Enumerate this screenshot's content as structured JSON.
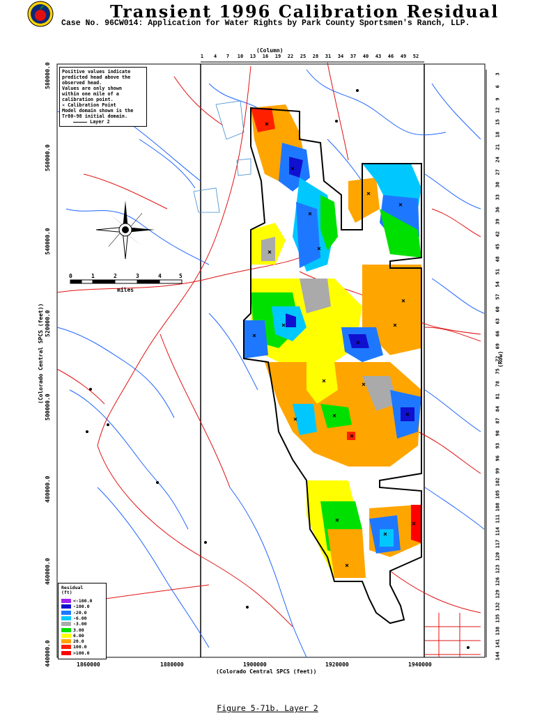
{
  "header": {
    "title": "Transient 1996 Calibration Residual",
    "subtitle": "Case No. 96CW014: Application for Water Rights by Park County Sportsmen's Ranch, LLP."
  },
  "note": {
    "line1": "Positive values indicate",
    "line2": "predicted head above the",
    "line3": "observed head.",
    "line4": "Values are only shown",
    "line5": "within one mile of a",
    "line6": "calibration point.",
    "line7": "✕ Calibration Point",
    "line8": "Model domain shown is the",
    "line9": "Tr80-98 initial domain.",
    "line10": "Layer 2"
  },
  "scalebar": {
    "ticks": [
      "0",
      "1",
      "2",
      "3",
      "4",
      "5"
    ],
    "unit": "miles"
  },
  "axes": {
    "left_ticks": [
      "580000.0",
      "560000.0",
      "540000.0",
      "520000.0",
      "500000.0",
      "480000.0",
      "460000.0",
      "440000.0"
    ],
    "left_label": "(Colorado Central SPCS (feet))",
    "bottom_ticks": [
      "1860000",
      "1880000",
      "1900000",
      "1920000",
      "1940000"
    ],
    "bottom_label": "(Colorado Central SPCS (feet))",
    "top_label": "(Column)",
    "top_ticks": [
      "1",
      "4",
      "7",
      "10",
      "13",
      "16",
      "19",
      "22",
      "25",
      "28",
      "31",
      "34",
      "37",
      "40",
      "43",
      "46",
      "49",
      "52"
    ],
    "right_label": "(Row)",
    "right_ticks": [
      "3",
      "6",
      "9",
      "12",
      "15",
      "18",
      "21",
      "24",
      "27",
      "30",
      "33",
      "36",
      "39",
      "42",
      "45",
      "48",
      "51",
      "54",
      "57",
      "60",
      "63",
      "66",
      "69",
      "72",
      "75",
      "78",
      "81",
      "84",
      "87",
      "90",
      "93",
      "96",
      "99",
      "102",
      "105",
      "108",
      "111",
      "114",
      "117",
      "120",
      "123",
      "126",
      "129",
      "132",
      "135",
      "138",
      "141",
      "144"
    ]
  },
  "legend": {
    "title1": "Residual",
    "title2": "(ft)",
    "items": [
      {
        "label": "<-100.0",
        "color": "#a020f0"
      },
      {
        "label": "-100.0",
        "color": "#1010d0"
      },
      {
        "label": "-20.0",
        "color": "#1e78ff"
      },
      {
        "label": "-6.00",
        "color": "#00c8ff"
      },
      {
        "label": "-3.00",
        "color": "#aaaaaa"
      },
      {
        "label": "3.00",
        "color": "#00e000"
      },
      {
        "label": "6.00",
        "color": "#ffff00"
      },
      {
        "label": "20.0",
        "color": "#ffa500"
      },
      {
        "label": "100.0",
        "color": "#ff2000"
      },
      {
        "label": ">100.0",
        "color": "#ff0000"
      }
    ]
  },
  "caption": "Figure 5-71b.  Layer 2"
}
